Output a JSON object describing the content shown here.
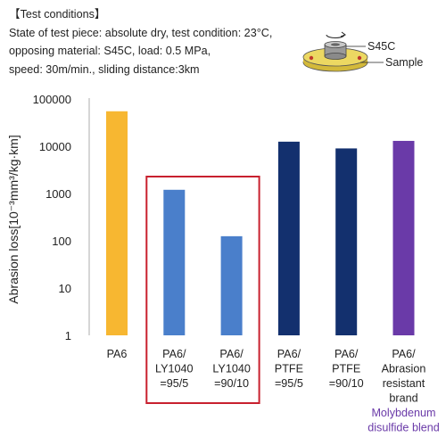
{
  "conditions": {
    "heading": "【Test conditions】",
    "line1": "State of test piece: absolute dry, test condition: 23°C,",
    "line2": "opposing material: S45C, load: 0.5 MPa,",
    "line3": "speed: 30m/min., sliding distance:3km"
  },
  "diagram": {
    "top_label": "S45C",
    "bottom_label": "Sample"
  },
  "chart_data": {
    "type": "bar",
    "ylabel": "Abrasion loss[10⁻³mm³/kg·km]",
    "yscale": "log",
    "ylim": [
      1,
      100000
    ],
    "yticks": [
      "1",
      "10",
      "100",
      "1000",
      "10000",
      "100000"
    ],
    "grid": false,
    "categories": [
      [
        "PA6"
      ],
      [
        "PA6/",
        "LY1040",
        "=95/5"
      ],
      [
        "PA6/",
        "LY1040",
        "=90/10"
      ],
      [
        "PA6/",
        "PTFE",
        "=95/5"
      ],
      [
        "PA6/",
        "PTFE",
        "=90/10"
      ],
      [
        "PA6/",
        "Abrasion",
        "resistant",
        "brand"
      ]
    ],
    "values": [
      55000,
      1200,
      125,
      12500,
      9000,
      13000
    ],
    "colors": [
      "#f7b731",
      "#4a7fcb",
      "#4a7fcb",
      "#13306e",
      "#13306e",
      "#6a3aa8"
    ],
    "notes": [
      null,
      null,
      null,
      null,
      null,
      [
        "Molybdenum",
        "disulfide blend"
      ]
    ],
    "highlight": {
      "categories": [
        1,
        2
      ],
      "color": "#c8202e"
    }
  }
}
